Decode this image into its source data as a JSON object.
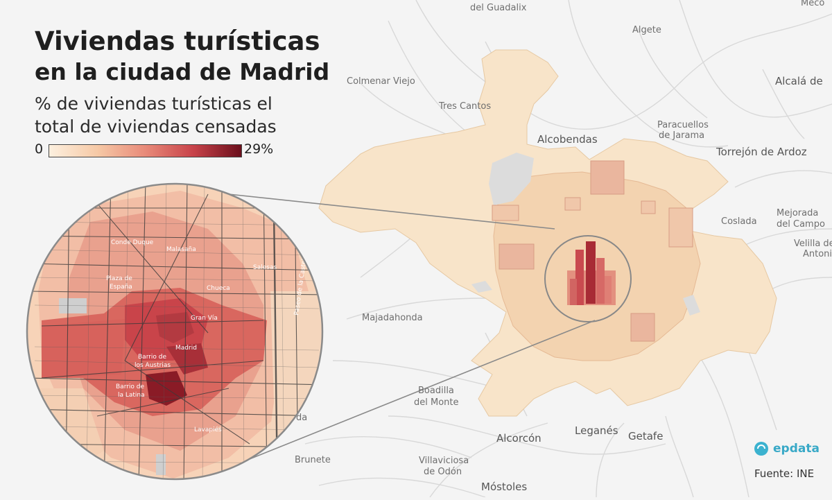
{
  "title": {
    "line1": "Viviendas turísticas",
    "line2": "en la ciudad de Madrid"
  },
  "subtitle": {
    "line1": "% de viviendas turísticas el",
    "line2": "total de viviendas censadas"
  },
  "legend": {
    "min": "0",
    "max": "29%",
    "gradient_colors": [
      "#fdf0df",
      "#f6c9a6",
      "#e88a79",
      "#c8434a",
      "#6b0f1c"
    ]
  },
  "map_places": {
    "guadalix": "del Guadalix",
    "meco": "Meco",
    "algete": "Algete",
    "alcala": "Alcalá de",
    "colmenar": "Colmenar Viejo",
    "tres_cantos": "Tres Cantos",
    "paracuellos_1": "Paracuellos",
    "paracuellos_2": "de Jarama",
    "alcobendas": "Alcobendas",
    "torrejon": "Torrejón de Ardoz",
    "mejorada_1": "Mejorada",
    "mejorada_2": "del Campo",
    "coslada": "Coslada",
    "velilla_1": "Velilla de S",
    "velilla_2": "Antonio",
    "majadahonda": "Majadahonda",
    "boadilla_1": "Boadilla",
    "boadilla_2": "del Monte",
    "alcorcon": "Alcorcón",
    "leganes": "Leganés",
    "getafe": "Getafe",
    "brunete": "Brunete",
    "villaviciosa_1": "Villaviciosa",
    "villaviciosa_2": "de Odón",
    "mostoles": "Móstoles",
    "partial_da": "da"
  },
  "inset_labels": {
    "conde_duque": "Conde Duque",
    "malasana": "Malasaña",
    "salesas": "Salesas",
    "plaza_espana_1": "Plaza de",
    "plaza_espana_2": "España",
    "chueca": "Chueca",
    "gran_via": "Gran Vía",
    "madrid": "Madrid",
    "austrias_1": "Barrio de",
    "austrias_2": "los Austrias",
    "latina_1": "Barrio de",
    "latina_2": "la Latina",
    "lavapies": "Lavapiés",
    "castellana": "Paseo de la Castellana"
  },
  "branding": {
    "logo_icon": "epdata-logo-icon",
    "logo_text": "epdata",
    "source": "Fuente: INE"
  }
}
